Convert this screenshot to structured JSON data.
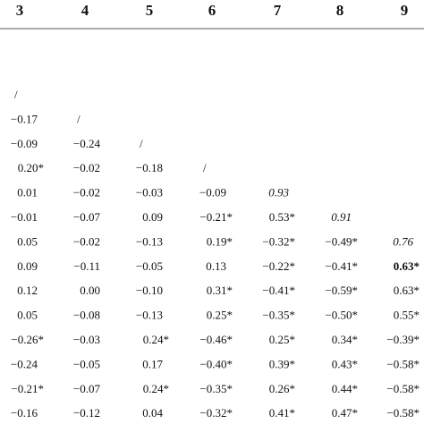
{
  "table": {
    "columns": [
      "3",
      "4",
      "5",
      "6",
      "7",
      "8",
      "9"
    ],
    "rows": [
      {
        "cells": [
          "/"
        ]
      },
      {
        "cells": [
          "−0.17",
          "/"
        ]
      },
      {
        "cells": [
          "−0.09",
          "−0.24",
          "/"
        ]
      },
      {
        "cells": [
          "0.20*",
          "−0.02",
          "−0.18",
          "/"
        ]
      },
      {
        "cells": [
          "0.01",
          "−0.02",
          "−0.03",
          "−0.09",
          "0.93"
        ],
        "last_cell_style": "italic"
      },
      {
        "cells": [
          "−0.01",
          "−0.07",
          "0.09",
          "−0.21*",
          "0.53*",
          "0.91"
        ],
        "last_cell_style": "italic"
      },
      {
        "cells": [
          "0.05",
          "−0.02",
          "−0.13",
          "0.19*",
          "−0.32*",
          "−0.49*",
          "0.76"
        ],
        "last_cell_style": "italic"
      },
      {
        "cells": [
          "0.09",
          "−0.11",
          "−0.05",
          "0.13",
          "−0.22*",
          "−0.41*",
          "0.63*"
        ],
        "last_cell_style": "bold"
      },
      {
        "cells": [
          "0.12",
          "0.00",
          "−0.10",
          "0.31*",
          "−0.41*",
          "−0.59*",
          "0.63*"
        ]
      },
      {
        "cells": [
          "0.05",
          "−0.08",
          "−0.13",
          "0.25*",
          "−0.35*",
          "−0.50*",
          "0.55*"
        ]
      },
      {
        "cells": [
          "−0.26*",
          "−0.03",
          "0.24*",
          "−0.46*",
          "0.25*",
          "0.34*",
          "−0.39*"
        ]
      },
      {
        "cells": [
          "−0.24",
          "−0.05",
          "0.17",
          "−0.40*",
          "0.39*",
          "0.43*",
          "−0.58*"
        ]
      },
      {
        "cells": [
          "−0.21*",
          "−0.07",
          "0.24*",
          "−0.35*",
          "0.26*",
          "0.44*",
          "−0.58*"
        ]
      },
      {
        "cells": [
          "−0.16",
          "−0.12",
          "0.04",
          "−0.32*",
          "0.41*",
          "0.47*",
          "−0.58*"
        ]
      }
    ]
  }
}
